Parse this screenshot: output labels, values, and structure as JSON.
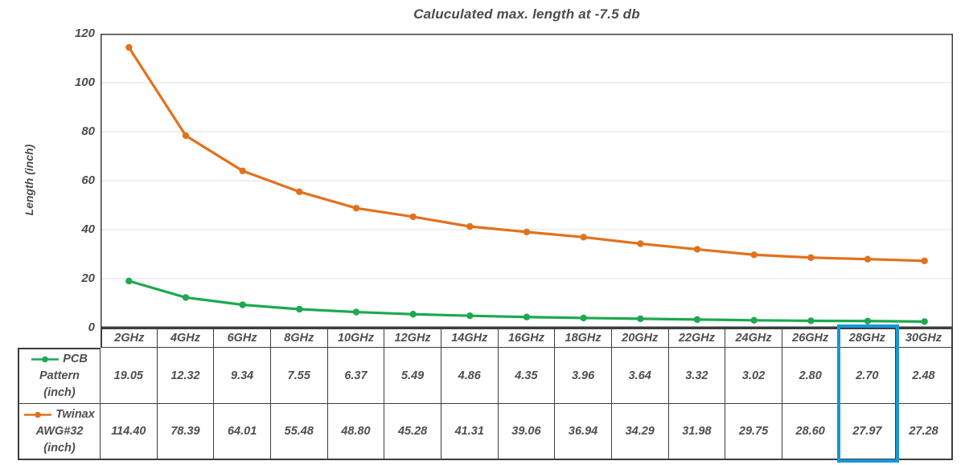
{
  "title": "Caluculated max. length at -7.5 db",
  "chart_data": {
    "type": "line",
    "title": "Caluculated max. length at -7.5 db",
    "xlabel": "",
    "ylabel": "Length (inch)",
    "ylim": [
      0,
      120
    ],
    "ytick_step": 20,
    "grid": true,
    "legend_position": "table-left",
    "categories": [
      "2GHz",
      "4GHz",
      "6GHz",
      "8GHz",
      "10GHz",
      "12GHz",
      "14GHz",
      "16GHz",
      "18GHz",
      "20GHz",
      "22GHz",
      "24GHz",
      "26GHz",
      "28GHz",
      "30GHz"
    ],
    "series": [
      {
        "name": "PCB Pattern (inch)",
        "color": "#1ca94f",
        "values": [
          19.05,
          12.32,
          9.34,
          7.55,
          6.37,
          5.49,
          4.86,
          4.35,
          3.96,
          3.64,
          3.32,
          3.02,
          2.8,
          2.7,
          2.48
        ]
      },
      {
        "name": "Twinax AWG#32 (inch)",
        "color": "#e2711d",
        "values": [
          114.4,
          78.39,
          64.01,
          55.48,
          48.8,
          45.28,
          41.31,
          39.06,
          36.94,
          34.29,
          31.98,
          29.75,
          28.6,
          27.97,
          27.28
        ]
      }
    ]
  },
  "table": {
    "headers": [
      "2GHz",
      "4GHz",
      "6GHz",
      "8GHz",
      "10GHz",
      "12GHz",
      "14GHz",
      "16GHz",
      "18GHz",
      "20GHz",
      "22GHz",
      "24GHz",
      "26GHz",
      "28GHz",
      "30GHz"
    ],
    "rows": [
      {
        "label_lines": [
          "PCB",
          "Pattern",
          "(inch)"
        ],
        "color": "#1ca94f",
        "values": [
          "19.05",
          "12.32",
          "9.34",
          "7.55",
          "6.37",
          "5.49",
          "4.86",
          "4.35",
          "3.96",
          "3.64",
          "3.32",
          "3.02",
          "2.80",
          "2.70",
          "2.48"
        ]
      },
      {
        "label_lines": [
          "Twinax",
          "AWG#32",
          "(inch)"
        ],
        "color": "#e2711d",
        "values": [
          "114.40",
          "78.39",
          "64.01",
          "55.48",
          "48.80",
          "45.28",
          "41.31",
          "39.06",
          "36.94",
          "34.29",
          "31.98",
          "29.75",
          "28.60",
          "27.97",
          "27.28"
        ]
      }
    ],
    "highlight": {
      "column": "28GHz",
      "color": "#1697d6"
    }
  },
  "colors": {
    "grid": "#e2e2e2",
    "plot_border": "#3d3d3d",
    "text": "#4b4b4b",
    "highlight_blue": "#1697d6"
  }
}
